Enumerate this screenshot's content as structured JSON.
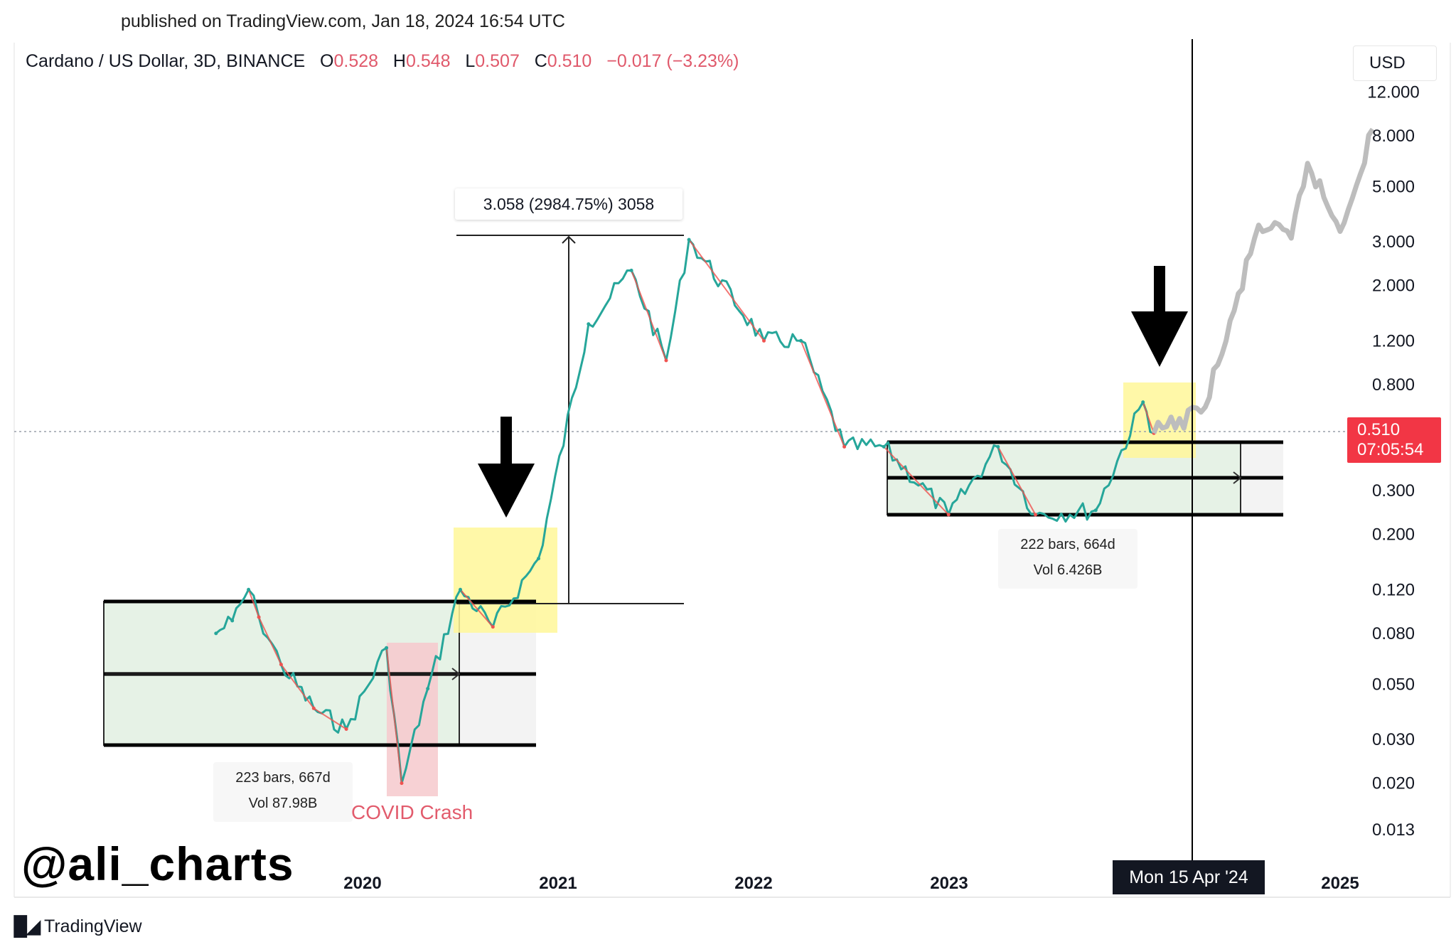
{
  "header": {
    "published": "published on TradingView.com, Jan 18, 2024 16:54 UTC",
    "symbol": "Cardano / US Dollar, 3D, BINANCE",
    "o_label": "O",
    "o_value": "0.528",
    "h_label": "H",
    "h_value": "0.548",
    "l_label": "L",
    "l_value": "0.507",
    "c_label": "C",
    "c_value": "0.510",
    "change": "−0.017 (−3.23%)"
  },
  "price_axis": {
    "currency": "USD",
    "ticks": [
      "12.000",
      "8.000",
      "5.000",
      "3.000",
      "2.000",
      "1.200",
      "0.800",
      "0.300",
      "0.200",
      "0.120",
      "0.080",
      "0.050",
      "0.030",
      "0.020",
      "0.013"
    ],
    "current_price": "0.510",
    "countdown": "07:05:54"
  },
  "time_axis": {
    "ticks": [
      "2020",
      "2021",
      "2022",
      "2023",
      "2025"
    ],
    "crosshair_label": "Mon 15 Apr '24"
  },
  "annotations": {
    "measure": "3.058 (2984.75%) 3058",
    "range1_line1": "223 bars, 667d",
    "range1_line2": "Vol 87.98B",
    "range2_line1": "222 bars, 664d",
    "range2_line2": "Vol 6.426B",
    "covid": "COVID Crash"
  },
  "watermark": "@ali_charts",
  "brand": "TradingView",
  "colors": {
    "up": "#26a69a",
    "down": "#ef5350",
    "projection": "#bdbdbd",
    "range_fill": "#e6f2e6",
    "highlight": "#fff799",
    "covid_fill": "#f6c9cd",
    "price_tag": "#f23645"
  },
  "chart_data": {
    "type": "line",
    "title": "Cardano / US Dollar, 3D, BINANCE",
    "y_scale": "log",
    "ylim": [
      0.013,
      12.0
    ],
    "x_ticks": [
      "2020",
      "2021",
      "2022",
      "2023",
      "2025"
    ],
    "series": [
      {
        "name": "Cardano / US Dollar",
        "points": [
          {
            "x": "2019-04",
            "y": 0.08
          },
          {
            "x": "2019-05",
            "y": 0.09
          },
          {
            "x": "2019-06",
            "y": 0.12
          },
          {
            "x": "2019-06-20",
            "y": 0.093
          },
          {
            "x": "2019-08",
            "y": 0.06
          },
          {
            "x": "2019-10",
            "y": 0.04
          },
          {
            "x": "2019-12",
            "y": 0.033
          },
          {
            "x": "2020-02-15",
            "y": 0.07
          },
          {
            "x": "2020-03-13",
            "y": 0.02
          },
          {
            "x": "2020-05",
            "y": 0.048
          },
          {
            "x": "2020-07",
            "y": 0.12
          },
          {
            "x": "2020-09",
            "y": 0.085
          },
          {
            "x": "2020-11-25",
            "y": 0.16
          },
          {
            "x": "2021-02-27",
            "y": 1.4
          },
          {
            "x": "2021-05-16",
            "y": 2.3
          },
          {
            "x": "2021-07-20",
            "y": 1.0
          },
          {
            "x": "2021-09-02",
            "y": 3.058
          },
          {
            "x": "2022-01-20",
            "y": 1.2
          },
          {
            "x": "2022-03-28",
            "y": 1.2
          },
          {
            "x": "2022-06-18",
            "y": 0.45
          },
          {
            "x": "2022-09",
            "y": 0.45
          },
          {
            "x": "2022-12-30",
            "y": 0.24
          },
          {
            "x": "2023-04",
            "y": 0.45
          },
          {
            "x": "2023-06-10",
            "y": 0.24
          },
          {
            "x": "2023-10",
            "y": 0.25
          },
          {
            "x": "2023-12-28",
            "y": 0.68
          },
          {
            "x": "2024-01-18",
            "y": 0.51
          }
        ]
      },
      {
        "name": "Projection",
        "points": [
          {
            "x": "2024-01-18",
            "y": 0.51
          },
          {
            "x": "2024-04-15",
            "y": 0.62
          },
          {
            "x": "2024-06",
            "y": 1.2
          },
          {
            "x": "2024-08",
            "y": 3.5
          },
          {
            "x": "2024-10",
            "y": 3.1
          },
          {
            "x": "2024-11",
            "y": 6.2
          },
          {
            "x": "2025-01",
            "y": 3.3
          },
          {
            "x": "2025-03",
            "y": 8.5
          }
        ]
      }
    ],
    "annotations": [
      {
        "text": "3.058 (2984.75%) 3058"
      },
      {
        "text": "223 bars, 667d"
      },
      {
        "text": "222 bars, 664d"
      },
      {
        "text": "COVID Crash"
      }
    ]
  }
}
